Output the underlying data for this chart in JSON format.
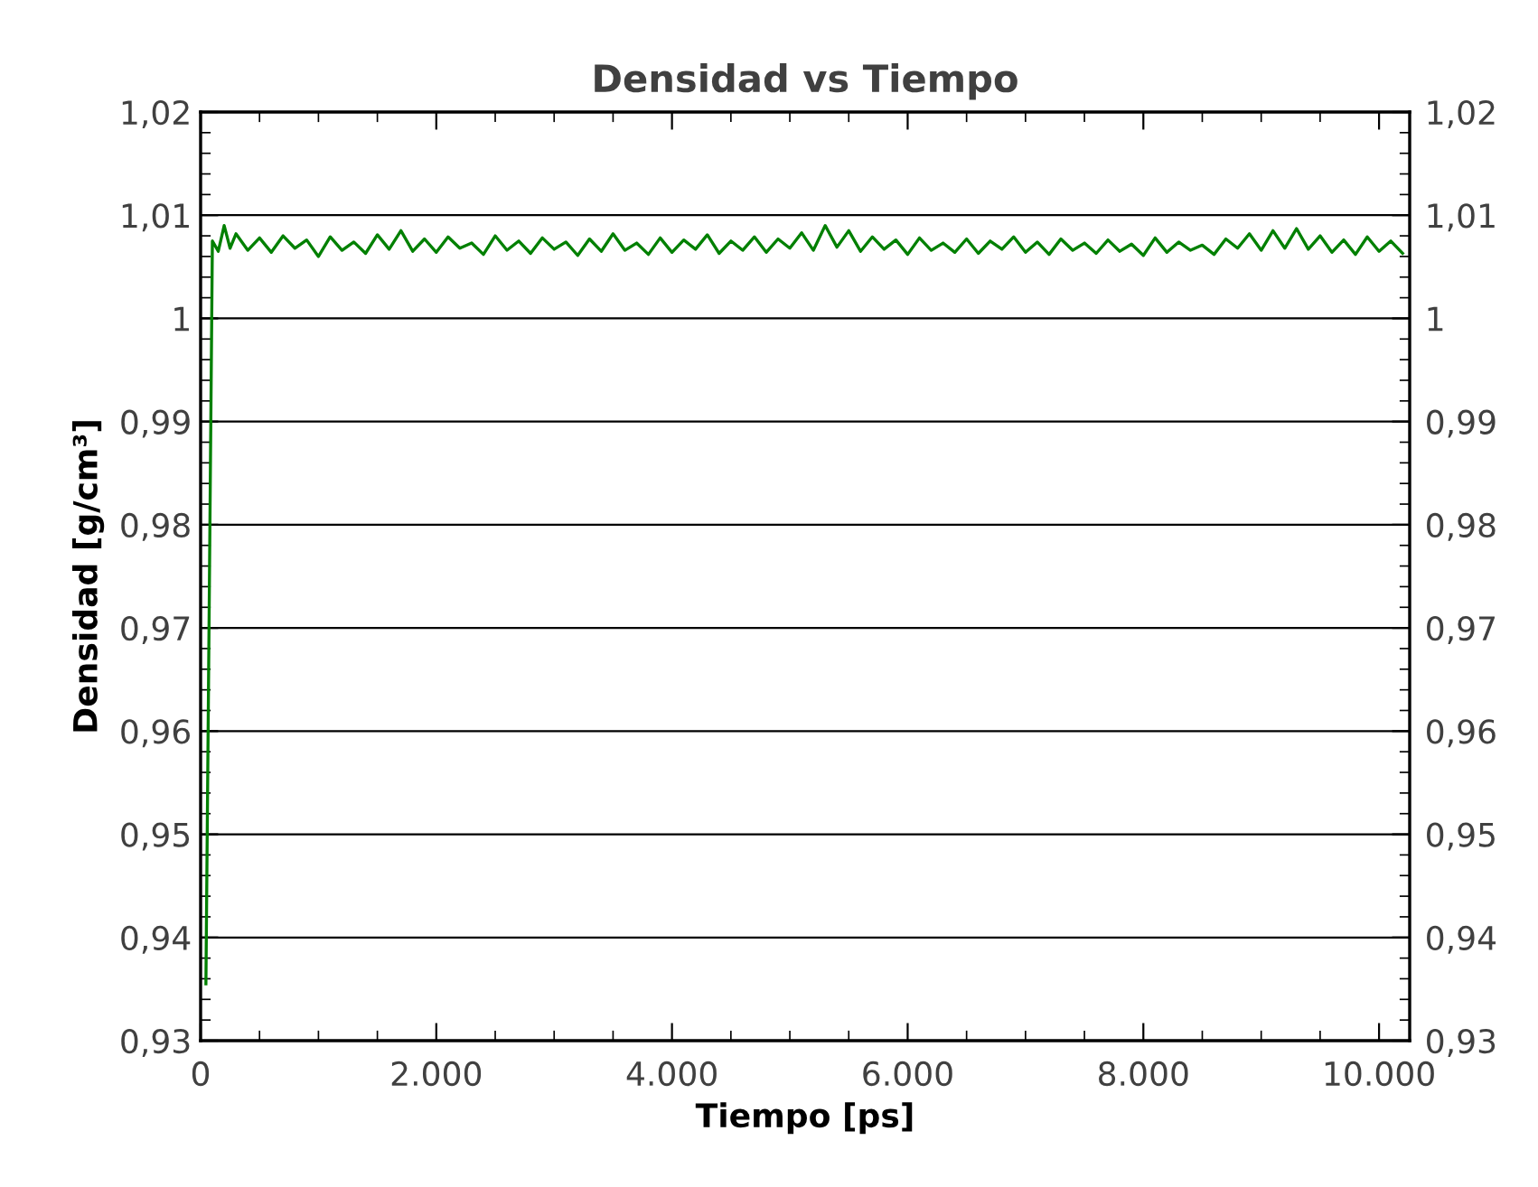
{
  "chart_data": {
    "type": "line",
    "title": "Densidad vs Tiempo",
    "xlabel": "Tiempo [ps]",
    "ylabel": "Densidad [g/cm³]",
    "x": [
      45,
      100,
      150,
      200,
      250,
      300,
      400,
      500,
      600,
      700,
      800,
      900,
      1000,
      1100,
      1200,
      1300,
      1400,
      1500,
      1600,
      1700,
      1800,
      1900,
      2000,
      2100,
      2200,
      2300,
      2400,
      2500,
      2600,
      2700,
      2800,
      2900,
      3000,
      3100,
      3200,
      3300,
      3400,
      3500,
      3600,
      3700,
      3800,
      3900,
      4000,
      4100,
      4200,
      4300,
      4400,
      4500,
      4600,
      4700,
      4800,
      4900,
      5000,
      5100,
      5200,
      5300,
      5400,
      5500,
      5600,
      5700,
      5800,
      5900,
      6000,
      6100,
      6200,
      6300,
      6400,
      6500,
      6600,
      6700,
      6800,
      6900,
      7000,
      7100,
      7200,
      7300,
      7400,
      7500,
      7600,
      7700,
      7800,
      7900,
      8000,
      8100,
      8200,
      8300,
      8400,
      8500,
      8600,
      8700,
      8800,
      8900,
      9000,
      9100,
      9200,
      9300,
      9400,
      9500,
      9600,
      9700,
      9800,
      9900,
      10000,
      10100,
      10200
    ],
    "series": [
      {
        "color": "#008000",
        "values": [
          0.9355,
          1.0075,
          1.0065,
          1.009,
          1.0068,
          1.0082,
          1.0066,
          1.0078,
          1.0064,
          1.008,
          1.0068,
          1.0076,
          1.006,
          1.0079,
          1.0066,
          1.0074,
          1.0063,
          1.0081,
          1.0067,
          1.0085,
          1.0065,
          1.0077,
          1.0064,
          1.0079,
          1.0068,
          1.0073,
          1.0062,
          1.008,
          1.0066,
          1.0075,
          1.0063,
          1.0078,
          1.0067,
          1.0074,
          1.0061,
          1.0077,
          1.0065,
          1.0082,
          1.0066,
          1.0073,
          1.0062,
          1.0078,
          1.0064,
          1.0076,
          1.0067,
          1.0081,
          1.0063,
          1.0075,
          1.0066,
          1.0079,
          1.0064,
          1.0077,
          1.0068,
          1.0083,
          1.0066,
          1.009,
          1.0069,
          1.0085,
          1.0065,
          1.0079,
          1.0067,
          1.0076,
          1.0062,
          1.0078,
          1.0066,
          1.0073,
          1.0064,
          1.0077,
          1.0063,
          1.0075,
          1.0067,
          1.0079,
          1.0064,
          1.0074,
          1.0062,
          1.0077,
          1.0066,
          1.0073,
          1.0063,
          1.0076,
          1.0065,
          1.0072,
          1.0061,
          1.0078,
          1.0064,
          1.0074,
          1.0066,
          1.0071,
          1.0062,
          1.0077,
          1.0068,
          1.0082,
          1.0066,
          1.0085,
          1.0068,
          1.0087,
          1.0067,
          1.008,
          1.0064,
          1.0076,
          1.0062,
          1.0079,
          1.0065,
          1.0075,
          1.0063
        ]
      }
    ],
    "xlim": [
      0,
      10260
    ],
    "ylim": [
      0.93,
      1.02
    ],
    "xticks": [
      0,
      {
        "value": 2000,
        "label": "2.000"
      },
      {
        "value": 4000,
        "label": "4.000"
      },
      {
        "value": 6000,
        "label": "6.000"
      },
      {
        "value": 8000,
        "label": "8.000"
      },
      {
        "value": 10000,
        "label": "10.000"
      }
    ],
    "yticks": [
      {
        "value": 0.93,
        "label": "0,93"
      },
      {
        "value": 0.94,
        "label": "0,94"
      },
      {
        "value": 0.95,
        "label": "0,95"
      },
      {
        "value": 0.96,
        "label": "0,96"
      },
      {
        "value": 0.97,
        "label": "0,97"
      },
      {
        "value": 0.98,
        "label": "0,98"
      },
      {
        "value": 0.99,
        "label": "0,99"
      },
      {
        "value": 1,
        "label": "1"
      },
      {
        "value": 1.01,
        "label": "1,01"
      },
      {
        "value": 1.02,
        "label": "1,02"
      }
    ],
    "y2lim": [
      0.93,
      1.02
    ],
    "y2ticks": [
      {
        "value": 0.93,
        "label": "0,93"
      },
      {
        "value": 0.94,
        "label": "0,94"
      },
      {
        "value": 0.95,
        "label": "0,95"
      },
      {
        "value": 0.96,
        "label": "0,96"
      },
      {
        "value": 0.97,
        "label": "0,97"
      },
      {
        "value": 0.98,
        "label": "0,98"
      },
      {
        "value": 0.99,
        "label": "0,99"
      },
      {
        "value": 1,
        "label": "1"
      },
      {
        "value": 1.01,
        "label": "1,01"
      },
      {
        "value": 1.02,
        "label": "1,02"
      }
    ],
    "grid": "y",
    "line_style": "solid",
    "marker": "none"
  }
}
